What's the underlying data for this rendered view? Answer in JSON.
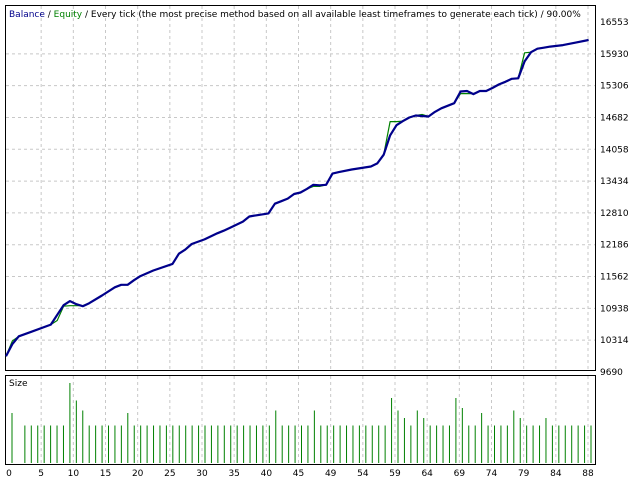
{
  "header": {
    "balance_label": "Balance",
    "separator": " / ",
    "equity_label": "Equity",
    "method_text": " / Every tick (the most precise method based on all available least timeframes to generate each tick) / 90.00%"
  },
  "colors": {
    "balance": "#00008b",
    "equity": "#008000",
    "grid": "#c8c8c8",
    "text": "#000000",
    "size_bar": "#008000"
  },
  "chart_data": [
    {
      "type": "line",
      "title": "",
      "xlabel": "",
      "ylabel": "",
      "ylim": [
        9690,
        16553
      ],
      "xlim": [
        0,
        92
      ],
      "y_ticks": [
        "16553",
        "15930",
        "15306",
        "14682",
        "14058",
        "13434",
        "12810",
        "12186",
        "11562",
        "10938",
        "10314",
        "9690"
      ],
      "grid": true,
      "series": [
        {
          "name": "Balance",
          "x": [
            0,
            1,
            2,
            4,
            7,
            9,
            10,
            11,
            12,
            13,
            15,
            17,
            18,
            19,
            20,
            21,
            23,
            26,
            27,
            28,
            29,
            31,
            33,
            34,
            35,
            37,
            38,
            39,
            41,
            42,
            43,
            44,
            45,
            46,
            47,
            48,
            49,
            50,
            51,
            52,
            54,
            56,
            57,
            58,
            59,
            60,
            61,
            62,
            63,
            64,
            66,
            67,
            68,
            70,
            71,
            72,
            73,
            74,
            75,
            76,
            77,
            78,
            79,
            80,
            81,
            82,
            83,
            84,
            85,
            87,
            89,
            91
          ],
          "y": [
            10000,
            10240,
            10390,
            10480,
            10620,
            11000,
            11080,
            11020,
            10980,
            11040,
            11190,
            11350,
            11400,
            11400,
            11490,
            11570,
            11680,
            11810,
            12010,
            12090,
            12200,
            12290,
            12410,
            12460,
            12520,
            12640,
            12740,
            12760,
            12800,
            12990,
            13040,
            13090,
            13180,
            13210,
            13280,
            13360,
            13350,
            13360,
            13580,
            13610,
            13660,
            13700,
            13720,
            13780,
            13950,
            14330,
            14530,
            14610,
            14680,
            14720,
            14700,
            14790,
            14860,
            14960,
            15190,
            15200,
            15140,
            15200,
            15200,
            15260,
            15330,
            15380,
            15440,
            15450,
            15780,
            15960,
            16030,
            16050,
            16070,
            16100,
            16150,
            16200
          ]
        },
        {
          "name": "Equity",
          "x": [
            0,
            1,
            2,
            4,
            7,
            8,
            9,
            10,
            11,
            12,
            13,
            15,
            17,
            18,
            19,
            20,
            21,
            23,
            26,
            27,
            28,
            29,
            31,
            33,
            34,
            35,
            37,
            38,
            39,
            41,
            42,
            43,
            44,
            45,
            46,
            47,
            48,
            49,
            50,
            51,
            52,
            54,
            56,
            57,
            58,
            59,
            60,
            61,
            62,
            63,
            64,
            65,
            66,
            67,
            68,
            70,
            71,
            72,
            73,
            74,
            75,
            76,
            77,
            78,
            79,
            80,
            81,
            82,
            83,
            84,
            85,
            87,
            89,
            91
          ],
          "y": [
            10000,
            10300,
            10390,
            10480,
            10620,
            10700,
            10980,
            10990,
            10990,
            10990,
            11040,
            11190,
            11350,
            11400,
            11400,
            11490,
            11570,
            11680,
            11810,
            12010,
            12090,
            12200,
            12290,
            12410,
            12460,
            12520,
            12640,
            12740,
            12760,
            12800,
            12990,
            13040,
            13090,
            13180,
            13210,
            13280,
            13330,
            13330,
            13360,
            13580,
            13610,
            13660,
            13700,
            13720,
            13780,
            13950,
            14600,
            14600,
            14610,
            14680,
            14720,
            14740,
            14700,
            14790,
            14860,
            14960,
            15150,
            15150,
            15150,
            15200,
            15200,
            15260,
            15330,
            15380,
            15440,
            15450,
            15950,
            15960,
            16030,
            16050,
            16070,
            16100,
            16150,
            16200
          ]
        }
      ]
    },
    {
      "type": "bar",
      "title": "Size",
      "x_ticks": [
        "0",
        "5",
        "10",
        "15",
        "20",
        "25",
        "30",
        "35",
        "40",
        "45",
        "49",
        "54",
        "59",
        "64",
        "69",
        "74",
        "79",
        "84",
        "88"
      ],
      "values": [
        2,
        0,
        1.5,
        1.5,
        1.5,
        1.5,
        1.5,
        1.5,
        1.5,
        3.2,
        2.5,
        2.1,
        1.5,
        1.5,
        1.5,
        1.5,
        1.5,
        1.5,
        2,
        1.5,
        1.5,
        1.5,
        1.5,
        1.5,
        1.5,
        1.5,
        1.5,
        1.5,
        1.5,
        1.5,
        1.5,
        1.5,
        1.5,
        1.5,
        1.5,
        1.5,
        1.5,
        1.5,
        1.5,
        1.5,
        1.5,
        2.1,
        1.5,
        1.5,
        1.5,
        1.5,
        1.5,
        2.1,
        1.5,
        1.5,
        1.5,
        1.5,
        1.5,
        1.5,
        1.5,
        1.5,
        1.5,
        1.5,
        1.5,
        2.6,
        2.1,
        1.8,
        1.5,
        2.1,
        1.8,
        1.5,
        1.5,
        1.5,
        1.5,
        2.6,
        2.2,
        1.5,
        1.5,
        2,
        1.5,
        1.5,
        1.5,
        1.5,
        2.1,
        1.8,
        1.5,
        1.5,
        1.5,
        1.8,
        1.5,
        1.5,
        1.5,
        1.5,
        1.5,
        1.5,
        1.5
      ]
    }
  ]
}
